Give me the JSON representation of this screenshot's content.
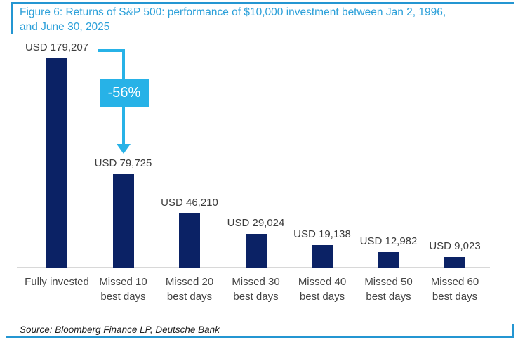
{
  "figure": {
    "title_line1": "Figure 6: Returns of S&P 500: performance of $10,000 investment between Jan 2, 1996,",
    "title_line2": "and June 30, 2025",
    "source": "Source: Bloomberg Finance LP, Deutsche Bank"
  },
  "annotation": {
    "label": "-56%",
    "from_category": "Fully invested",
    "to_category": "Missed 10 best days"
  },
  "colors": {
    "accent_rule_blue": "#2496D2",
    "title_blue": "#2CA0D9",
    "annotation_cyan": "#27B2E7",
    "bar_navy": "#0B2265",
    "label_gray": "#3D3D3D",
    "baseline_gray": "#D8D8D8"
  },
  "chart_data": {
    "type": "bar",
    "title": "Figure 6: Returns of S&P 500: performance of $10,000 investment between Jan 2, 1996, and June 30, 2025",
    "categories": [
      "Fully invested",
      "Missed 10\nbest days",
      "Missed 20\nbest days",
      "Missed 30\nbest days",
      "Missed 40\nbest days",
      "Missed 50\nbest days",
      "Missed 60\nbest days"
    ],
    "values": [
      179207,
      79725,
      46210,
      29024,
      19138,
      12982,
      9023
    ],
    "value_labels": [
      "USD 179,207",
      "USD 79,725",
      "USD 46,210",
      "USD 29,024",
      "USD 19,138",
      "USD 12,982",
      "USD 9,023"
    ],
    "xlabel": "",
    "ylabel": "",
    "ylim": [
      0,
      185000
    ],
    "value_axis_visible": false,
    "grid": false,
    "legend": "none",
    "annotations": [
      {
        "text": "-56%",
        "from": "Fully invested",
        "to": "Missed 10 best days"
      }
    ],
    "source": "Source: Bloomberg Finance LP, Deutsche Bank"
  }
}
